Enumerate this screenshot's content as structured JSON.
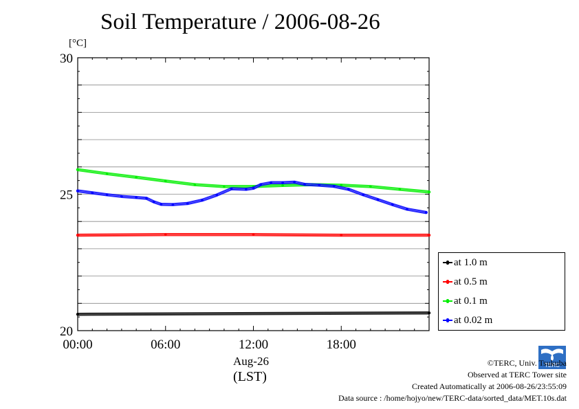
{
  "title": "Soil Temperature / 2006-08-26",
  "y_unit": "[°C]",
  "x_date_label": "Aug-26",
  "x_unit_label": "(LST)",
  "legend": [
    {
      "label": "at 1.0 m",
      "color": "#000000"
    },
    {
      "label": "at 0.5 m",
      "color": "#ff0000"
    },
    {
      "label": "at 0.1 m",
      "color": "#00ee00"
    },
    {
      "label": "at 0.02 m",
      "color": "#0000ff"
    }
  ],
  "footer": {
    "copyright": "©TERC, Univ. Tsukuba",
    "observed": "Observed at TERC Tower site",
    "created": "Created Automatically at 2006-08-26/23:55:09",
    "source": "Data source : /home/hojyo/new/TERC-data/sorted_data/MET.10s.dat"
  },
  "logo_text": "TERC",
  "chart_data": {
    "type": "line",
    "title": "Soil Temperature / 2006-08-26",
    "ylabel": "[°C]",
    "xlabel": "Aug-26 (LST)",
    "xlim": [
      0,
      24
    ],
    "ylim": [
      20,
      30
    ],
    "x_ticks": [
      0,
      6,
      12,
      18
    ],
    "x_tick_labels": [
      "00:00",
      "06:00",
      "12:00",
      "18:00"
    ],
    "y_ticks": [
      20,
      25,
      30
    ],
    "y_tick_labels": [
      "20",
      "25",
      "30"
    ],
    "grid": true,
    "legend_position": "bottom-right (outside)",
    "series": [
      {
        "name": "at 1.0 m",
        "color": "#000000",
        "x": [
          0,
          24
        ],
        "y": [
          20.6,
          20.65
        ]
      },
      {
        "name": "at 0.5 m",
        "color": "#ff0000",
        "x": [
          0,
          6,
          12,
          18,
          24
        ],
        "y": [
          23.5,
          23.52,
          23.52,
          23.5,
          23.5
        ]
      },
      {
        "name": "at 0.1 m",
        "color": "#00ee00",
        "x": [
          0,
          2,
          4,
          6,
          8,
          10,
          12,
          14,
          16,
          18,
          20,
          22,
          24
        ],
        "y": [
          25.9,
          25.75,
          25.62,
          25.48,
          25.35,
          25.28,
          25.28,
          25.32,
          25.35,
          25.33,
          25.28,
          25.18,
          25.08
        ]
      },
      {
        "name": "at 0.02 m",
        "color": "#0000ff",
        "x": [
          0,
          1,
          2,
          3,
          4,
          4.7,
          5.2,
          5.7,
          6.5,
          7.5,
          8.5,
          9.5,
          10.5,
          11.5,
          12,
          12.5,
          13.2,
          14,
          14.8,
          15.5,
          16.5,
          17.5,
          18.5,
          19.5,
          20.5,
          21.5,
          22.5,
          23.8
        ],
        "y": [
          25.12,
          25.05,
          24.98,
          24.92,
          24.88,
          24.85,
          24.72,
          24.63,
          24.62,
          24.66,
          24.78,
          24.97,
          25.2,
          25.18,
          25.22,
          25.35,
          25.42,
          25.42,
          25.44,
          25.36,
          25.33,
          25.29,
          25.18,
          24.98,
          24.8,
          24.62,
          24.45,
          24.33
        ]
      }
    ]
  }
}
